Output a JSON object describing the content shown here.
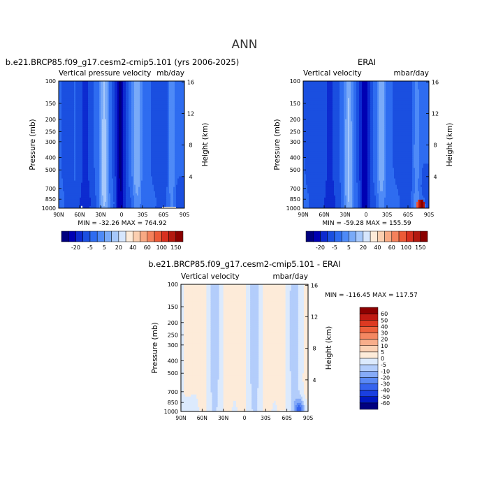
{
  "figure_title": "ANN",
  "colors": {
    "top_scale": [
      "#00007f",
      "#0000b3",
      "#0d2bd0",
      "#1a4fe0",
      "#2e6cf0",
      "#4e8af7",
      "#79aaf8",
      "#a6c8fb",
      "#d6e6fd",
      "#fdebd9",
      "#fbcfb0",
      "#f8a983",
      "#f4815b",
      "#ec5a37",
      "#d7301f",
      "#b3180f",
      "#8a0000"
    ],
    "diff_scale": [
      "#00007f",
      "#0018c0",
      "#1a3fe0",
      "#3563ee",
      "#5a89f5",
      "#86abf8",
      "#b3cdfb",
      "#dceafd",
      "#fdebd9",
      "#fbd1b4",
      "#f8ae8b",
      "#f48862",
      "#ed613c",
      "#dd3a22",
      "#c01a12",
      "#8c0000"
    ]
  },
  "chart_data": [
    {
      "type": "heatmap",
      "title": "b.e21.BRCP85.f09_g17.cesm2-cmip5.101 (yrs 2006-2025)",
      "subtitle_left": "Vertical pressure velocity",
      "subtitle_right": "mb/day",
      "ylabel": "Pressure (mb)",
      "ylabel_right": "Height (km)",
      "x_ticks": [
        "90N",
        "60N",
        "30N",
        "0",
        "30S",
        "60S",
        "90S"
      ],
      "y_ticks": [
        100,
        150,
        200,
        250,
        300,
        400,
        500,
        700,
        850,
        1000
      ],
      "y_ticks_right": [
        16,
        12,
        8,
        4
      ],
      "ylim": [
        1000,
        100
      ],
      "xlim": [
        "90N",
        "90S"
      ],
      "stats": {
        "min": "-32.26",
        "max": "764.92"
      },
      "stats_text": "MIN = -32.26   MAX = 764.92",
      "colorbar_labels": [
        "-20",
        "-5",
        "5",
        "20",
        "40",
        "60",
        "100",
        "150"
      ]
    },
    {
      "type": "heatmap",
      "title": "ERAI",
      "subtitle_left": "Vertical velocity",
      "subtitle_right": "mbar/day",
      "ylabel": "Pressure (mb)",
      "ylabel_right": "Height (km)",
      "x_ticks": [
        "90N",
        "60N",
        "30N",
        "0",
        "30S",
        "60S",
        "90S"
      ],
      "y_ticks": [
        100,
        150,
        200,
        250,
        300,
        400,
        500,
        700,
        850,
        1000
      ],
      "y_ticks_right": [
        16,
        12,
        8,
        4
      ],
      "ylim": [
        1000,
        100
      ],
      "xlim": [
        "90N",
        "90S"
      ],
      "stats": {
        "min": "-59.28",
        "max": "155.59"
      },
      "stats_text": "MIN = -59.28   MAX = 155.59",
      "colorbar_labels": [
        "-20",
        "-5",
        "5",
        "20",
        "40",
        "60",
        "100",
        "150"
      ]
    },
    {
      "type": "heatmap",
      "title": "b.e21.BRCP85.f09_g17.cesm2-cmip5.101 - ERAI",
      "subtitle_left": "Vertical velocity",
      "subtitle_right": "mbar/day",
      "ylabel": "Pressure (mb)",
      "ylabel_right": "Height (km)",
      "x_ticks": [
        "90N",
        "60N",
        "30N",
        "0",
        "30S",
        "60S",
        "90S"
      ],
      "y_ticks": [
        100,
        150,
        200,
        250,
        300,
        400,
        500,
        700,
        850,
        1000
      ],
      "y_ticks_right": [
        16,
        12,
        8,
        4
      ],
      "ylim": [
        1000,
        100
      ],
      "xlim": [
        "90N",
        "90S"
      ],
      "stats": {
        "min": "-116.45",
        "max": "117.57"
      },
      "stats_text": "MIN = -116.45   MAX = 117.57",
      "colorbar_labels": [
        "60",
        "50",
        "40",
        "30",
        "20",
        "10",
        "5",
        "0",
        "-5",
        "-10",
        "-20",
        "-30",
        "-40",
        "-50",
        "-60"
      ]
    }
  ]
}
